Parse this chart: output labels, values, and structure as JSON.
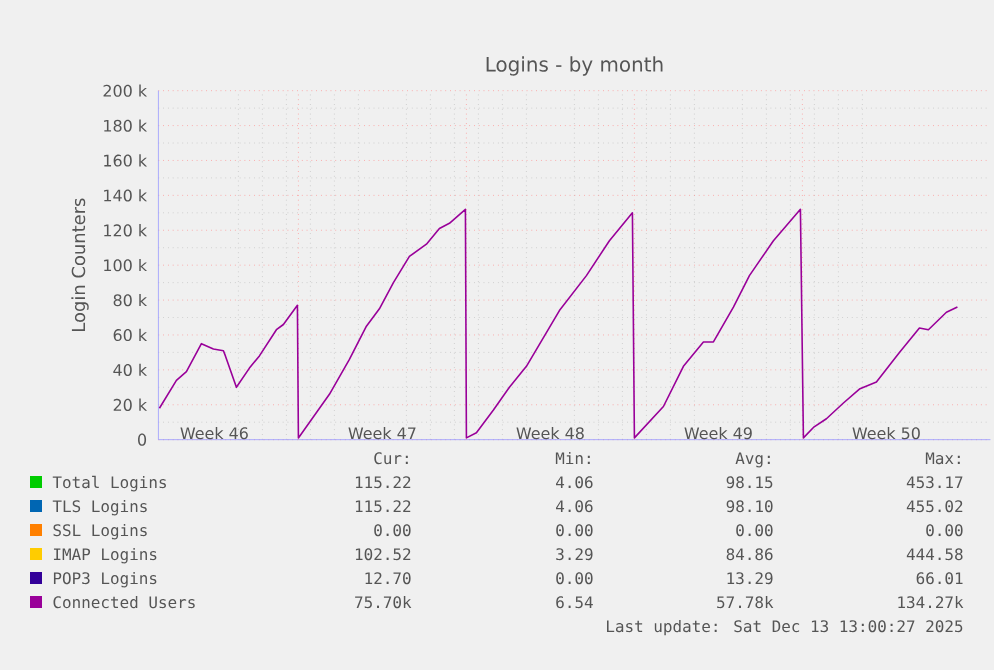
{
  "chart_data": {
    "type": "line",
    "title": "Logins - by month",
    "ylabel": "Login Counters",
    "xlim": [
      "2025-11-11T04:00",
      "2025-12-15T20:00"
    ],
    "ylim": [
      0,
      200000
    ],
    "xticks": [
      {
        "value": "2025-11-13T12:00",
        "label": "Week 46"
      },
      {
        "value": "2025-11-17",
        "label": null
      },
      {
        "value": "2025-11-20T12:00",
        "label": "Week 47"
      },
      {
        "value": "2025-11-24",
        "label": null
      },
      {
        "value": "2025-11-27T12:00",
        "label": "Week 48"
      },
      {
        "value": "2025-12-01",
        "label": null
      },
      {
        "value": "2025-12-04T12:00",
        "label": "Week 49"
      },
      {
        "value": "2025-12-08",
        "label": null
      },
      {
        "value": "2025-12-11T12:00",
        "label": "Week 50"
      }
    ],
    "yticks": [
      0,
      {
        "value": 20000,
        "label": "20 k"
      },
      {
        "value": 40000,
        "label": "40 k"
      },
      {
        "value": 60000,
        "label": "60 k"
      },
      {
        "value": 80000,
        "label": "80 k"
      },
      {
        "value": 100000,
        "label": "100 k"
      },
      {
        "value": 120000,
        "label": "120 k"
      },
      {
        "value": 140000,
        "label": "140 k"
      },
      {
        "value": 160000,
        "label": "160 k"
      },
      {
        "value": 180000,
        "label": "180 k"
      },
      {
        "value": 200000,
        "label": "200 k"
      }
    ],
    "grid": true,
    "legend": "bottom",
    "marker": "none",
    "line_style": "solid",
    "series": [
      {
        "name": "Total Logins",
        "color": "#00cc00",
        "values": [
          null
        ]
      },
      {
        "name": "TLS Logins",
        "color": "#0066b3",
        "values": [
          null
        ]
      },
      {
        "name": "SSL Logins",
        "color": "#ff8000",
        "values": [
          null
        ]
      },
      {
        "name": "IMAP Logins",
        "color": "#ffcc00",
        "values": [
          null
        ]
      },
      {
        "name": "POP3 Logins",
        "color": "#330099",
        "values": [
          null
        ]
      },
      {
        "name": "Connected Users",
        "color": "#990099",
        "x": [
          "2025-11-11T05:00",
          "2025-11-11T22:00",
          "2025-11-12T08:00",
          "2025-11-12T23:00",
          "2025-11-13T11:00",
          "2025-11-13T21:00",
          "2025-11-13T23:00",
          "2025-11-14T10:00",
          "2025-11-14T23:00",
          "2025-11-15T09:00",
          "2025-11-16T02:00",
          "2025-11-16T09:00",
          "2025-11-16T23:00",
          "2025-11-17T00:00",
          "2025-11-18T07:00",
          "2025-11-19T03:00",
          "2025-11-19T20:00",
          "2025-11-20T09:00",
          "2025-11-20T23:00",
          "2025-11-21T15:00",
          "2025-11-22T08:00",
          "2025-11-22T21:00",
          "2025-11-23T07:00",
          "2025-11-23T23:00",
          "2025-11-24T00:00",
          "2025-11-24T10:00",
          "2025-11-25T03:00",
          "2025-11-25T19:00",
          "2025-11-26T12:00",
          "2025-11-27T21:00",
          "2025-11-29T00:00",
          "2025-11-29T23:00",
          "2025-11-30T22:00",
          "2025-12-01T00:00",
          "2025-12-02T05:00",
          "2025-12-03T01:00",
          "2025-12-03T21:00",
          "2025-12-04T07:00",
          "2025-12-05T03:00",
          "2025-12-05T19:00",
          "2025-12-06T19:00",
          "2025-12-07T22:00",
          "2025-12-08T01:00",
          "2025-12-08T11:00",
          "2025-12-09T00:00",
          "2025-12-09T17:00",
          "2025-12-10T09:00",
          "2025-12-11T02:00",
          "2025-12-12T01:00",
          "2025-12-12T21:00",
          "2025-12-13T06:00",
          "2025-12-14T00:00",
          "2025-12-14T11:00"
        ],
        "values": [
          18000,
          34000,
          39000,
          55000,
          52000,
          51000,
          48000,
          30000,
          41000,
          48000,
          63000,
          66000,
          77000,
          1000,
          26000,
          46000,
          65000,
          75000,
          90000,
          105000,
          112000,
          121000,
          124000,
          132000,
          1000,
          4000,
          17000,
          30000,
          42000,
          74000,
          94000,
          114000,
          130000,
          1000,
          19000,
          42000,
          56000,
          56000,
          76000,
          94000,
          114000,
          132000,
          1000,
          7000,
          12000,
          21000,
          29000,
          33000,
          50000,
          64000,
          63000,
          73000,
          76000
        ]
      }
    ],
    "annotations": [
      "Cur:",
      "Min:",
      "Avg:",
      "Max:",
      "115.22",
      "4.06",
      "98.15",
      "453.17",
      "115.22",
      "4.06",
      "98.10",
      "455.02",
      "0.00",
      "0.00",
      "0.00",
      "0.00",
      "102.52",
      "3.29",
      "84.86",
      "444.58",
      "12.70",
      "0.00",
      "13.29",
      "66.01",
      "75.70k",
      "6.54",
      "57.78k",
      "134.27k",
      "Last update: Sat Dec 13 13:00:27 2025"
    ]
  }
}
